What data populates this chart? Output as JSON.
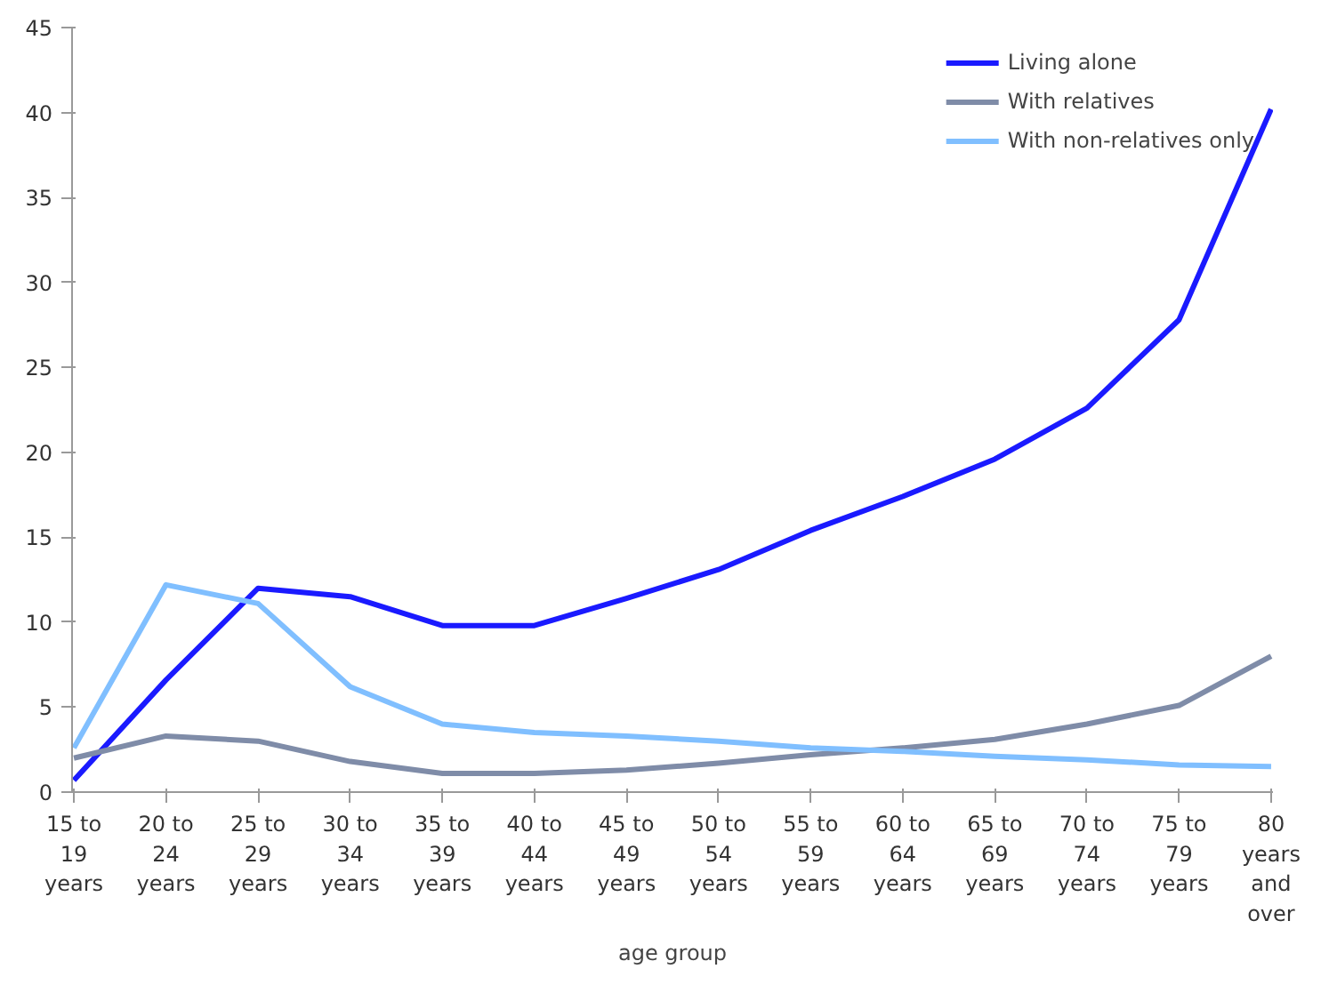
{
  "chart_data": {
    "type": "line",
    "xlabel": "age group",
    "categories": [
      "15 to 19 years",
      "20 to 24 years",
      "25 to 29 years",
      "30 to 34 years",
      "35 to 39 years",
      "40 to 44 years",
      "45 to 49 years",
      "50 to 54 years",
      "55 to 59 years",
      "60 to 64 years",
      "65 to 69 years",
      "70 to 74 years",
      "75 to 79 years",
      "80 years and over"
    ],
    "series": [
      {
        "name": "Living alone",
        "color": "#1a1aff",
        "values": [
          0.7,
          6.6,
          12.0,
          11.5,
          9.8,
          9.8,
          11.4,
          13.1,
          15.4,
          17.4,
          19.6,
          22.6,
          27.8,
          40.2
        ]
      },
      {
        "name": "With relatives",
        "color": "#7f8ca8",
        "values": [
          2.0,
          3.3,
          3.0,
          1.8,
          1.1,
          1.1,
          1.3,
          1.7,
          2.2,
          2.6,
          3.1,
          4.0,
          5.1,
          8.0
        ]
      },
      {
        "name": "With non-relatives only",
        "color": "#80bfff",
        "values": [
          2.6,
          12.2,
          11.1,
          6.2,
          4.0,
          3.5,
          3.3,
          3.0,
          2.6,
          2.4,
          2.1,
          1.9,
          1.6,
          1.5
        ]
      }
    ],
    "ylim": [
      0,
      45
    ],
    "yticks": [
      0,
      5,
      10,
      15,
      20,
      25,
      30,
      35,
      40,
      45
    ],
    "grid": false,
    "legend": "top right",
    "marker": "none",
    "line_style": "solid"
  }
}
